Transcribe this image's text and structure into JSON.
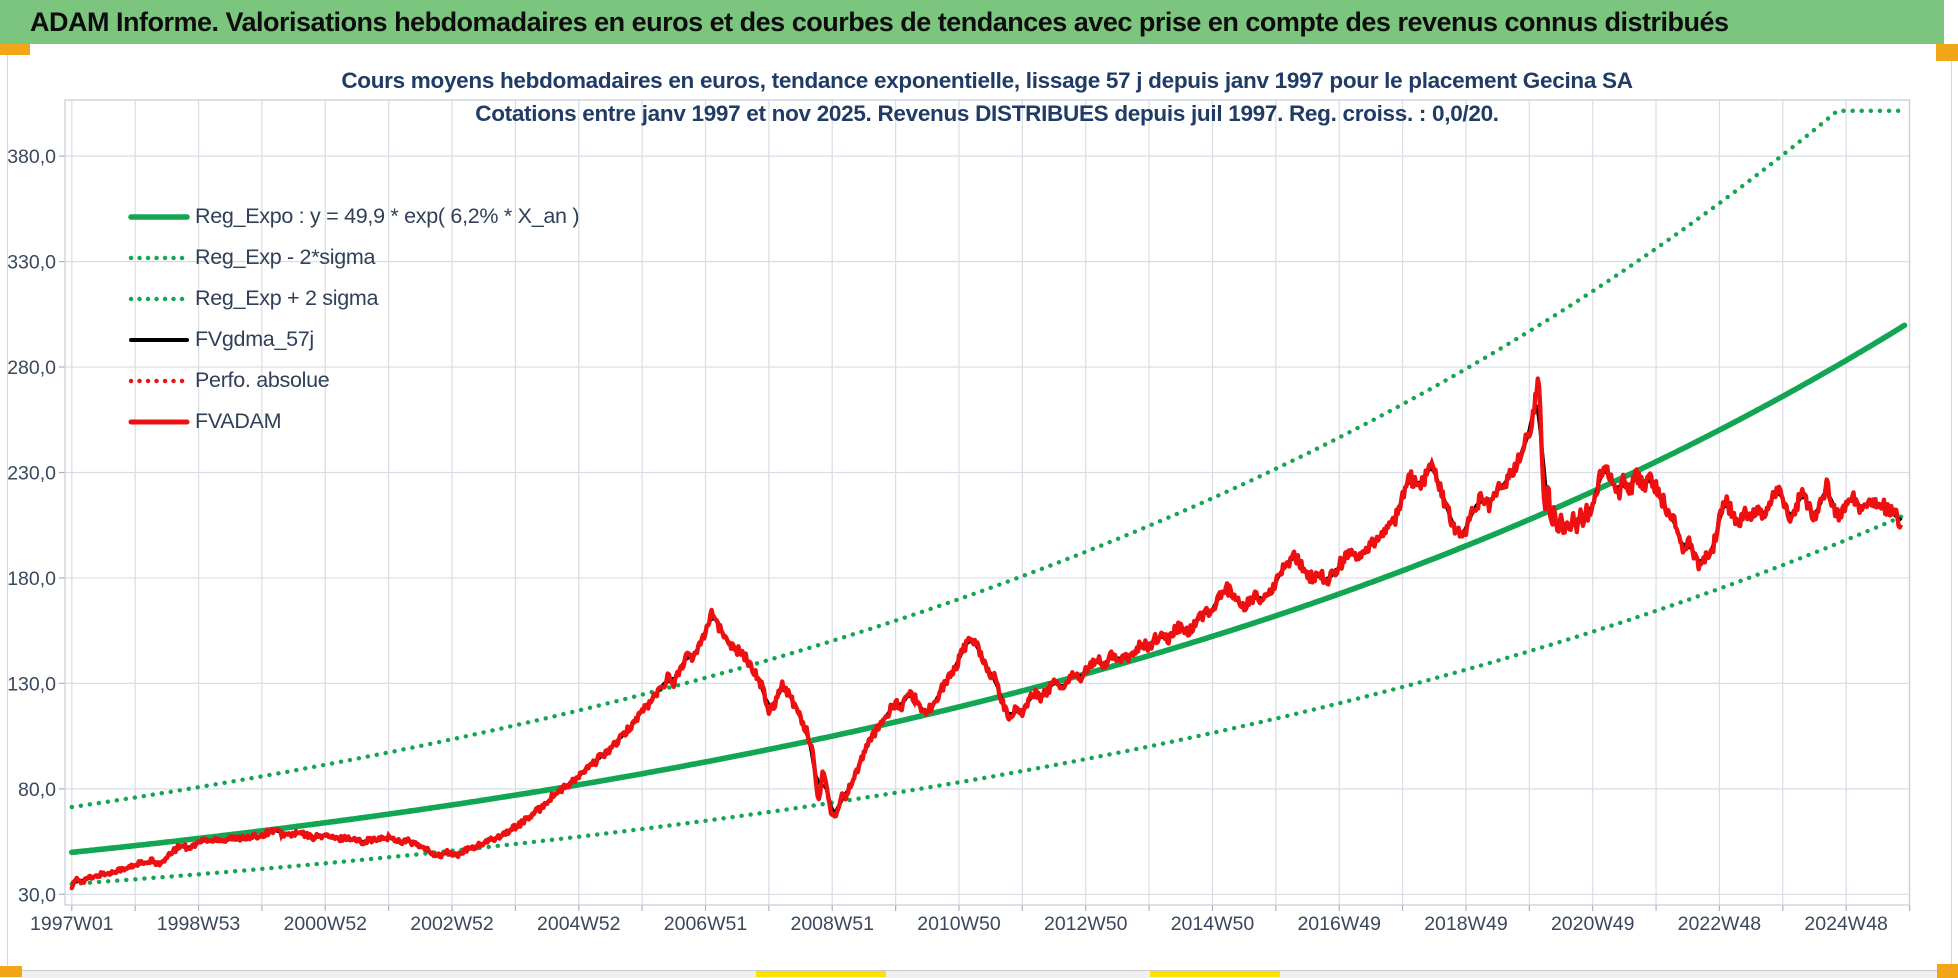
{
  "banner": {
    "text": "ADAM Informe. Valorisations hebdomadaires en euros et des courbes de tendances avec prise en compte des revenus connus distribués"
  },
  "colors": {
    "banner_bg": "#7cc57e",
    "trend_green": "#12a653",
    "series_red": "#ee1010",
    "series_black": "#000000",
    "grid": "#d9dde5",
    "tick": "#aab2bf",
    "frame": "#c9cfda",
    "axis_text": "#39485e",
    "title_text": "#1f3b66",
    "legend_text": "#2f4058",
    "accent_orange": "#f2a516",
    "accent_yellow": "#ffe000"
  },
  "chart_data": {
    "type": "line",
    "title_line1": "Cours moyens hebdomadaires en euros, tendance exponentielle, lissage 57 j depuis janv 1997 pour le placement Gecina SA",
    "title_line2": "Cotations entre janv 1997 et nov 2025. Revenus DISTRIBUES depuis juil 1997. Reg. croiss. : 0,0/20.",
    "x_tick_labels": [
      "1997W01",
      "1998W53",
      "2000W52",
      "2002W52",
      "2004W52",
      "2006W51",
      "2008W51",
      "2010W50",
      "2012W50",
      "2014W50",
      "2016W49",
      "2018W49",
      "2020W49",
      "2022W48",
      "2024W48"
    ],
    "y_tick_labels": [
      "380,0",
      "330,0",
      "280,0",
      "230,0",
      "180,0",
      "130,0",
      "80,0",
      "30,0"
    ],
    "y_tick_values": [
      380,
      330,
      280,
      230,
      180,
      130,
      80,
      30
    ],
    "x_range_years": [
      1997.0,
      2025.92
    ],
    "ylim": [
      25,
      406
    ],
    "grid": "on",
    "legend_position": "upper-left",
    "legend": [
      {
        "label": "Reg_Expo : y = 49,9 * exp( 6,2% *  X_an )",
        "color": "#12a653",
        "style": "solid",
        "width": 5.5
      },
      {
        "label": "Reg_Exp - 2*sigma",
        "color": "#12a653",
        "style": "dotted",
        "width": 4.4
      },
      {
        "label": "Reg_Exp + 2 sigma",
        "color": "#12a653",
        "style": "dotted",
        "width": 4.4
      },
      {
        "label": "FVgdma_57j",
        "color": "#000000",
        "style": "solid",
        "width": 4.0
      },
      {
        "label": "Perfo. absolue",
        "color": "#ee1010",
        "style": "dotted",
        "width": 4.4
      },
      {
        "label": "FVADAM",
        "color": "#ee1010",
        "style": "solid",
        "width": 5.0
      }
    ],
    "trend": {
      "a": 49.9,
      "rate": 0.062,
      "band_factor": 1.43,
      "band_clip_value": 401.5,
      "x_origin_year": 1997.0
    },
    "smoothing_weeks": 9,
    "series_fvadam_points": [
      [
        1997.0,
        34
      ],
      [
        1997.08,
        37
      ],
      [
        1997.17,
        36
      ],
      [
        1997.25,
        38
      ],
      [
        1997.33,
        37.5
      ],
      [
        1997.42,
        39
      ],
      [
        1997.5,
        40
      ],
      [
        1997.58,
        39.5
      ],
      [
        1997.67,
        41
      ],
      [
        1997.75,
        42
      ],
      [
        1997.83,
        41.5
      ],
      [
        1997.92,
        43
      ],
      [
        1998.0,
        44
      ],
      [
        1998.08,
        45
      ],
      [
        1998.17,
        44
      ],
      [
        1998.25,
        46
      ],
      [
        1998.33,
        45
      ],
      [
        1998.42,
        44.5
      ],
      [
        1998.5,
        47
      ],
      [
        1998.58,
        50
      ],
      [
        1998.67,
        52
      ],
      [
        1998.75,
        53.5
      ],
      [
        1998.83,
        52
      ],
      [
        1998.92,
        53
      ],
      [
        1999.0,
        54.5
      ],
      [
        1999.1,
        56
      ],
      [
        1999.2,
        55
      ],
      [
        1999.3,
        56.5
      ],
      [
        1999.4,
        55.5
      ],
      [
        1999.5,
        57
      ],
      [
        1999.6,
        56
      ],
      [
        1999.7,
        57.5
      ],
      [
        1999.8,
        56.5
      ],
      [
        1999.9,
        57.5
      ],
      [
        2000.0,
        58
      ],
      [
        2000.1,
        59.5
      ],
      [
        2000.2,
        60.5
      ],
      [
        2000.3,
        59
      ],
      [
        2000.4,
        58
      ],
      [
        2000.5,
        58.5
      ],
      [
        2000.6,
        59
      ],
      [
        2000.7,
        58
      ],
      [
        2000.8,
        57
      ],
      [
        2000.9,
        57.5
      ],
      [
        2001.0,
        58
      ],
      [
        2001.1,
        57
      ],
      [
        2001.2,
        56
      ],
      [
        2001.3,
        57
      ],
      [
        2001.4,
        56.5
      ],
      [
        2001.5,
        55.5
      ],
      [
        2001.6,
        55
      ],
      [
        2001.7,
        56
      ],
      [
        2001.8,
        55.5
      ],
      [
        2001.9,
        56.5
      ],
      [
        2002.0,
        57
      ],
      [
        2002.1,
        56
      ],
      [
        2002.2,
        55
      ],
      [
        2002.3,
        55.5
      ],
      [
        2002.4,
        54
      ],
      [
        2002.5,
        52.5
      ],
      [
        2002.6,
        51
      ],
      [
        2002.7,
        49.5
      ],
      [
        2002.8,
        48
      ],
      [
        2002.9,
        50
      ],
      [
        2003.0,
        49
      ],
      [
        2003.1,
        48.5
      ],
      [
        2003.2,
        50.5
      ],
      [
        2003.3,
        52
      ],
      [
        2003.4,
        53
      ],
      [
        2003.5,
        54
      ],
      [
        2003.6,
        55.5
      ],
      [
        2003.7,
        57
      ],
      [
        2003.8,
        58.5
      ],
      [
        2003.9,
        60
      ],
      [
        2004.0,
        62
      ],
      [
        2004.1,
        64
      ],
      [
        2004.2,
        66
      ],
      [
        2004.3,
        68.5
      ],
      [
        2004.4,
        71
      ],
      [
        2004.5,
        74
      ],
      [
        2004.6,
        77
      ],
      [
        2004.7,
        79
      ],
      [
        2004.8,
        81
      ],
      [
        2004.9,
        83
      ],
      [
        2005.0,
        86
      ],
      [
        2005.1,
        88.5
      ],
      [
        2005.2,
        91
      ],
      [
        2005.3,
        94
      ],
      [
        2005.4,
        96.5
      ],
      [
        2005.5,
        99
      ],
      [
        2005.6,
        102
      ],
      [
        2005.7,
        105
      ],
      [
        2005.8,
        109
      ],
      [
        2005.9,
        113
      ],
      [
        2006.0,
        117
      ],
      [
        2006.1,
        120
      ],
      [
        2006.2,
        124
      ],
      [
        2006.3,
        128
      ],
      [
        2006.4,
        133
      ],
      [
        2006.5,
        130
      ],
      [
        2006.6,
        137
      ],
      [
        2006.7,
        143
      ],
      [
        2006.8,
        141
      ],
      [
        2006.9,
        149
      ],
      [
        2007.0,
        155
      ],
      [
        2007.05,
        160
      ],
      [
        2007.1,
        165
      ],
      [
        2007.15,
        161
      ],
      [
        2007.2,
        157
      ],
      [
        2007.3,
        152
      ],
      [
        2007.4,
        149
      ],
      [
        2007.5,
        146
      ],
      [
        2007.6,
        143
      ],
      [
        2007.7,
        140
      ],
      [
        2007.8,
        134
      ],
      [
        2007.9,
        128
      ],
      [
        2008.0,
        117
      ],
      [
        2008.1,
        121
      ],
      [
        2008.2,
        130
      ],
      [
        2008.3,
        126
      ],
      [
        2008.4,
        120
      ],
      [
        2008.5,
        114
      ],
      [
        2008.6,
        107
      ],
      [
        2008.7,
        97
      ],
      [
        2008.75,
        80
      ],
      [
        2008.8,
        75
      ],
      [
        2008.85,
        90
      ],
      [
        2008.9,
        85
      ],
      [
        2008.95,
        72
      ],
      [
        2009.0,
        68
      ],
      [
        2009.05,
        66
      ],
      [
        2009.1,
        72
      ],
      [
        2009.15,
        79
      ],
      [
        2009.2,
        75
      ],
      [
        2009.3,
        83
      ],
      [
        2009.4,
        89
      ],
      [
        2009.5,
        97
      ],
      [
        2009.6,
        103
      ],
      [
        2009.7,
        108
      ],
      [
        2009.8,
        112
      ],
      [
        2009.9,
        117
      ],
      [
        2010.0,
        121
      ],
      [
        2010.1,
        118
      ],
      [
        2010.2,
        126
      ],
      [
        2010.3,
        123
      ],
      [
        2010.4,
        119
      ],
      [
        2010.5,
        116
      ],
      [
        2010.6,
        121
      ],
      [
        2010.7,
        126
      ],
      [
        2010.8,
        131
      ],
      [
        2010.9,
        136
      ],
      [
        2011.0,
        141
      ],
      [
        2011.1,
        148
      ],
      [
        2011.2,
        152
      ],
      [
        2011.3,
        147
      ],
      [
        2011.4,
        141
      ],
      [
        2011.5,
        131
      ],
      [
        2011.55,
        136
      ],
      [
        2011.65,
        124
      ],
      [
        2011.75,
        116
      ],
      [
        2011.8,
        113
      ],
      [
        2011.9,
        119
      ],
      [
        2012.0,
        116
      ],
      [
        2012.1,
        122
      ],
      [
        2012.2,
        126
      ],
      [
        2012.3,
        123
      ],
      [
        2012.4,
        127
      ],
      [
        2012.5,
        130
      ],
      [
        2012.6,
        127
      ],
      [
        2012.7,
        131
      ],
      [
        2012.8,
        134
      ],
      [
        2012.9,
        132
      ],
      [
        2013.0,
        136
      ],
      [
        2013.1,
        139
      ],
      [
        2013.2,
        142
      ],
      [
        2013.3,
        138
      ],
      [
        2013.4,
        143
      ],
      [
        2013.5,
        140
      ],
      [
        2013.6,
        144
      ],
      [
        2013.7,
        141
      ],
      [
        2013.8,
        146
      ],
      [
        2013.9,
        149
      ],
      [
        2014.0,
        147
      ],
      [
        2014.1,
        151
      ],
      [
        2014.2,
        154
      ],
      [
        2014.3,
        151
      ],
      [
        2014.4,
        155
      ],
      [
        2014.5,
        157
      ],
      [
        2014.6,
        154
      ],
      [
        2014.7,
        158
      ],
      [
        2014.8,
        161
      ],
      [
        2014.9,
        163
      ],
      [
        2015.0,
        166
      ],
      [
        2015.1,
        171
      ],
      [
        2015.2,
        176
      ],
      [
        2015.3,
        173
      ],
      [
        2015.4,
        169
      ],
      [
        2015.5,
        166
      ],
      [
        2015.6,
        169
      ],
      [
        2015.7,
        172
      ],
      [
        2015.8,
        169
      ],
      [
        2015.9,
        174
      ],
      [
        2016.0,
        178
      ],
      [
        2016.1,
        183
      ],
      [
        2016.2,
        188
      ],
      [
        2016.3,
        191
      ],
      [
        2016.4,
        186
      ],
      [
        2016.5,
        182
      ],
      [
        2016.6,
        179
      ],
      [
        2016.7,
        182
      ],
      [
        2016.8,
        178
      ],
      [
        2016.9,
        181
      ],
      [
        2017.0,
        186
      ],
      [
        2017.1,
        189
      ],
      [
        2017.2,
        192
      ],
      [
        2017.3,
        188
      ],
      [
        2017.4,
        192
      ],
      [
        2017.5,
        195
      ],
      [
        2017.6,
        198
      ],
      [
        2017.7,
        201
      ],
      [
        2017.8,
        205
      ],
      [
        2017.9,
        209
      ],
      [
        2018.0,
        218
      ],
      [
        2018.1,
        230
      ],
      [
        2018.15,
        226
      ],
      [
        2018.25,
        222
      ],
      [
        2018.35,
        227
      ],
      [
        2018.45,
        232
      ],
      [
        2018.55,
        226
      ],
      [
        2018.65,
        217
      ],
      [
        2018.75,
        209
      ],
      [
        2018.85,
        202
      ],
      [
        2018.95,
        199
      ],
      [
        2019.05,
        208
      ],
      [
        2019.15,
        213
      ],
      [
        2019.25,
        218
      ],
      [
        2019.35,
        214
      ],
      [
        2019.45,
        219
      ],
      [
        2019.55,
        223
      ],
      [
        2019.65,
        227
      ],
      [
        2019.75,
        231
      ],
      [
        2019.85,
        237
      ],
      [
        2019.95,
        245
      ],
      [
        2020.02,
        252
      ],
      [
        2020.08,
        260
      ],
      [
        2020.12,
        269
      ],
      [
        2020.15,
        277
      ],
      [
        2020.18,
        258
      ],
      [
        2020.2,
        237
      ],
      [
        2020.25,
        212
      ],
      [
        2020.3,
        222
      ],
      [
        2020.35,
        204
      ],
      [
        2020.4,
        214
      ],
      [
        2020.45,
        201
      ],
      [
        2020.5,
        209
      ],
      [
        2020.55,
        199
      ],
      [
        2020.6,
        207
      ],
      [
        2020.65,
        202
      ],
      [
        2020.7,
        209
      ],
      [
        2020.75,
        204
      ],
      [
        2020.8,
        211
      ],
      [
        2020.85,
        206
      ],
      [
        2020.9,
        212
      ],
      [
        2020.95,
        208
      ],
      [
        2021.0,
        215
      ],
      [
        2021.05,
        220
      ],
      [
        2021.1,
        226
      ],
      [
        2021.15,
        231
      ],
      [
        2021.2,
        233
      ],
      [
        2021.3,
        225
      ],
      [
        2021.4,
        219
      ],
      [
        2021.5,
        227
      ],
      [
        2021.6,
        222
      ],
      [
        2021.7,
        229
      ],
      [
        2021.8,
        223
      ],
      [
        2021.9,
        228
      ],
      [
        2022.0,
        223
      ],
      [
        2022.1,
        217
      ],
      [
        2022.2,
        211
      ],
      [
        2022.3,
        206
      ],
      [
        2022.4,
        196
      ],
      [
        2022.45,
        192
      ],
      [
        2022.5,
        199
      ],
      [
        2022.6,
        191
      ],
      [
        2022.65,
        187
      ],
      [
        2022.7,
        184
      ],
      [
        2022.8,
        193
      ],
      [
        2022.85,
        189
      ],
      [
        2022.95,
        201
      ],
      [
        2023.05,
        213
      ],
      [
        2023.1,
        217
      ],
      [
        2023.2,
        211
      ],
      [
        2023.3,
        206
      ],
      [
        2023.4,
        212
      ],
      [
        2023.5,
        208
      ],
      [
        2023.6,
        213
      ],
      [
        2023.7,
        210
      ],
      [
        2023.8,
        215
      ],
      [
        2023.9,
        222
      ],
      [
        2024.0,
        217
      ],
      [
        2024.1,
        207
      ],
      [
        2024.2,
        213
      ],
      [
        2024.3,
        220
      ],
      [
        2024.4,
        214
      ],
      [
        2024.5,
        209
      ],
      [
        2024.6,
        217
      ],
      [
        2024.7,
        224
      ],
      [
        2024.8,
        213
      ],
      [
        2024.9,
        209
      ],
      [
        2025.0,
        216
      ],
      [
        2025.1,
        220
      ],
      [
        2025.2,
        213
      ],
      [
        2025.3,
        213
      ],
      [
        2025.4,
        217
      ],
      [
        2025.5,
        213
      ],
      [
        2025.6,
        214
      ],
      [
        2025.7,
        211
      ],
      [
        2025.8,
        209
      ],
      [
        2025.88,
        204
      ]
    ]
  }
}
